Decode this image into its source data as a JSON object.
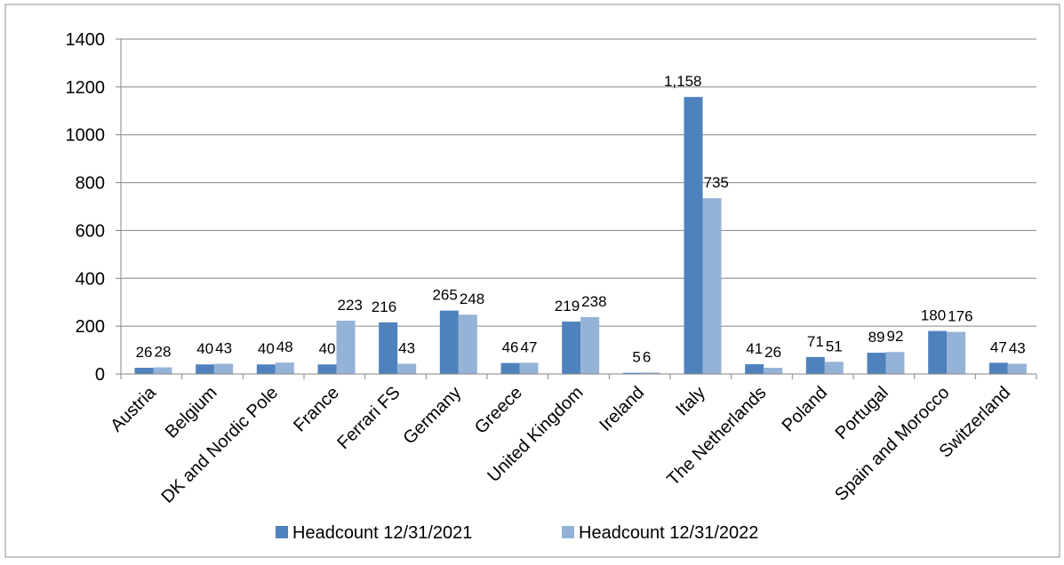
{
  "chart_data": {
    "type": "bar",
    "title": "",
    "xlabel": "",
    "ylabel": "",
    "ylim": [
      0,
      1400
    ],
    "yticks": [
      "0",
      "200",
      "400",
      "600",
      "800",
      "1000",
      "1200",
      "1400"
    ],
    "ytick_values": [
      0,
      200,
      400,
      600,
      800,
      1000,
      1200,
      1400
    ],
    "grid": true,
    "legend_position": "bottom",
    "categories": [
      "Austria",
      "Belgium",
      "DK  and Nordic Pole",
      "France",
      "Ferrari FS",
      "Germany",
      "Greece",
      "United Kingdom",
      "Ireland",
      "Italy",
      "The Netherlands",
      "Poland",
      "Portugal",
      "Spain and Morocco",
      "Switzerland"
    ],
    "series": [
      {
        "name": "Headcount 12/31/2021",
        "color": "#4f81bd",
        "values": [
          26,
          40,
          40,
          40,
          216,
          265,
          46,
          219,
          5,
          1158,
          41,
          71,
          89,
          180,
          47
        ],
        "labels": [
          "26",
          "40",
          "40",
          "40",
          "216",
          "265",
          "46",
          "219",
          "5",
          "1,158",
          "41",
          "71",
          "89",
          "180",
          "47"
        ]
      },
      {
        "name": "Headcount 12/31/2022",
        "color": "#95b3d7",
        "values": [
          28,
          43,
          48,
          223,
          43,
          248,
          47,
          238,
          6,
          735,
          26,
          51,
          92,
          176,
          43
        ],
        "labels": [
          "28",
          "43",
          "48",
          "223",
          "43",
          "248",
          "47",
          "238",
          "6",
          "735",
          "26",
          "51",
          "92",
          "176",
          "43"
        ]
      }
    ]
  }
}
